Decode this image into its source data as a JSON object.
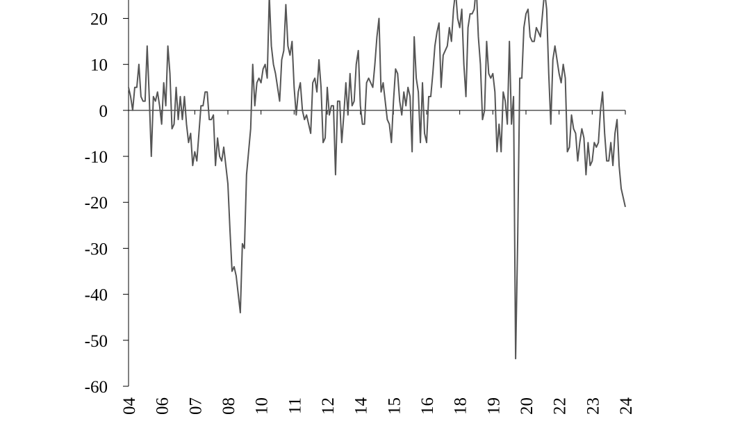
{
  "chart_data": {
    "type": "line",
    "series": [
      {
        "color": "#555555",
        "values": [
          5,
          3,
          0,
          5,
          5,
          10,
          3,
          2,
          2,
          14,
          3,
          -10,
          3,
          2,
          4,
          1,
          -3,
          6,
          1,
          14,
          8,
          -4,
          -3,
          5,
          -2,
          3,
          -2,
          3,
          -3,
          -7,
          -5,
          -12,
          -9,
          -11,
          -5,
          1,
          1,
          4,
          4,
          -2,
          -2,
          -1,
          -12,
          -6,
          -10,
          -11,
          -8,
          -12,
          -16,
          -26,
          -35,
          -34,
          -36,
          -40,
          -44,
          -29,
          -30,
          -14,
          -9,
          -4,
          10,
          1,
          6,
          7,
          6,
          9,
          10,
          7,
          25,
          14,
          10,
          8,
          5,
          2,
          11,
          13,
          23,
          14,
          12,
          15,
          5,
          -1,
          4,
          6,
          0,
          -2,
          -1,
          -3,
          -5,
          6,
          7,
          4,
          11,
          5,
          -7,
          -6,
          5,
          -1,
          1,
          1,
          -14,
          2,
          2,
          -7,
          -1,
          6,
          -1,
          8,
          1,
          2,
          10,
          13,
          1,
          -3,
          -3,
          6,
          7,
          6,
          5,
          10,
          16,
          20,
          4,
          6,
          2,
          -2,
          -3,
          -7,
          2,
          9,
          8,
          2,
          -1,
          4,
          1,
          5,
          3,
          -9,
          16,
          7,
          4,
          -7,
          6,
          -5,
          -7,
          3,
          3,
          8,
          14,
          17,
          19,
          5,
          12,
          13,
          14,
          18,
          15,
          22,
          26,
          20,
          18,
          22,
          10,
          3,
          18,
          21,
          21,
          22,
          27,
          16,
          10,
          -2,
          0,
          15,
          8,
          7,
          8,
          4,
          -9,
          -3,
          -9,
          4,
          2,
          -3,
          15,
          -3,
          3,
          -54,
          -28,
          7,
          7,
          18,
          21,
          22,
          16,
          15,
          15,
          18,
          17,
          16,
          21,
          26,
          22,
          8,
          -3,
          11,
          14,
          11,
          8,
          6,
          10,
          7,
          -9,
          -8,
          -1,
          -4,
          -5,
          -11,
          -7,
          -4,
          -6,
          -14,
          -7,
          -12,
          -11,
          -7,
          -8,
          -7,
          0,
          4,
          -5,
          -11,
          -11,
          -7,
          -12,
          -5,
          -2,
          -12,
          -17,
          -19,
          -21
        ]
      }
    ],
    "xlim": [
      0,
      240
    ],
    "xticks": [
      {
        "value": 0,
        "label": "04"
      },
      {
        "value": 16,
        "label": "06"
      },
      {
        "value": 32,
        "label": "07"
      },
      {
        "value": 48,
        "label": "08"
      },
      {
        "value": 64,
        "label": "10"
      },
      {
        "value": 80,
        "label": "11"
      },
      {
        "value": 96,
        "label": "12"
      },
      {
        "value": 112,
        "label": "14"
      },
      {
        "value": 128,
        "label": "15"
      },
      {
        "value": 144,
        "label": "16"
      },
      {
        "value": 160,
        "label": "18"
      },
      {
        "value": 176,
        "label": "19"
      },
      {
        "value": 192,
        "label": "20"
      },
      {
        "value": 208,
        "label": "22"
      },
      {
        "value": 224,
        "label": "23"
      },
      {
        "value": 240,
        "label": "24"
      }
    ],
    "ylim": [
      -60,
      24
    ],
    "yticks": [
      -60,
      -50,
      -40,
      -30,
      -20,
      -10,
      0,
      10,
      20
    ]
  }
}
